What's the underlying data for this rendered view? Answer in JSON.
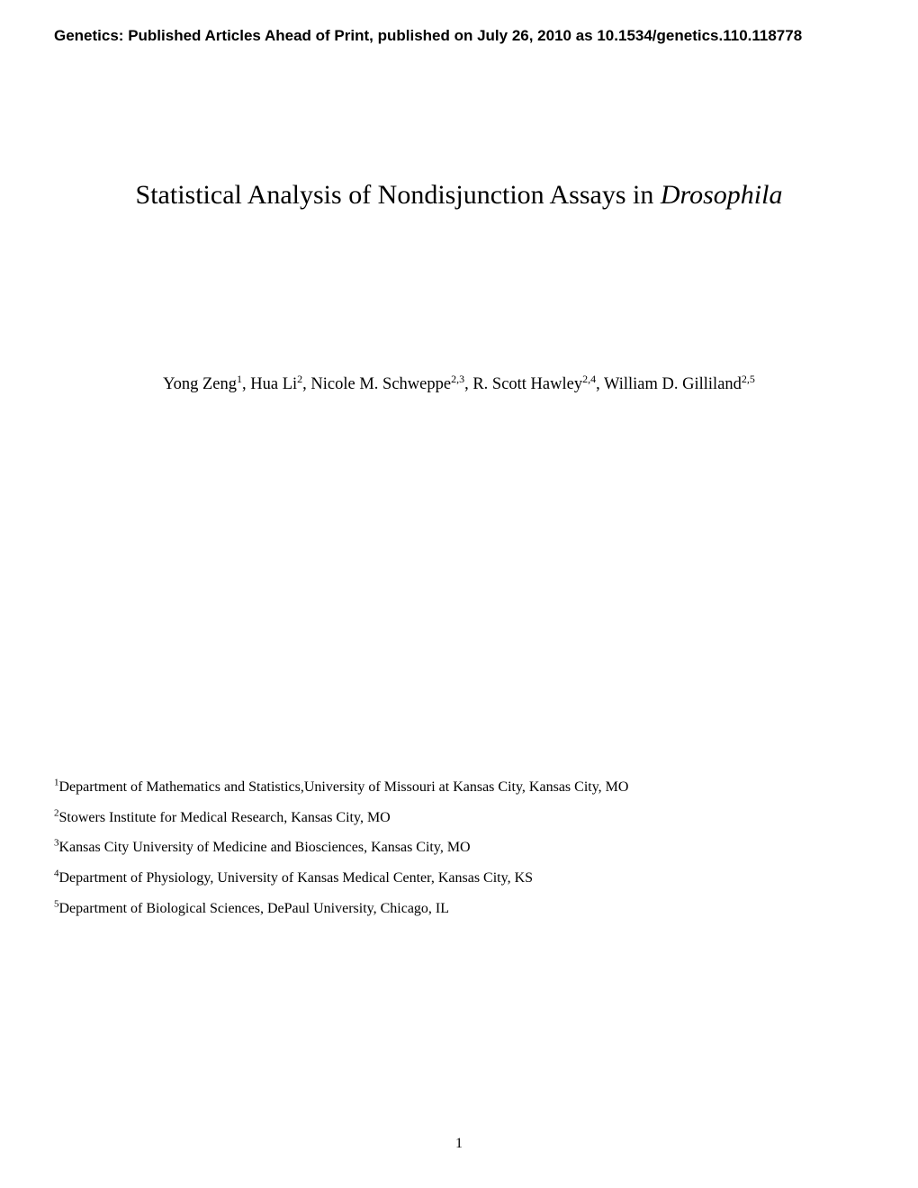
{
  "header": {
    "notice": "Genetics: Published Articles Ahead of Print, published on July 26, 2010 as 10.1534/genetics.110.118778"
  },
  "title": {
    "main": "Statistical Analysis of Nondisjunction Assays in ",
    "italic": "Drosophila"
  },
  "authors": [
    {
      "name": "Yong Zeng",
      "sup": "1"
    },
    {
      "name": "Hua Li",
      "sup": "2"
    },
    {
      "name": "Nicole M. Schweppe",
      "sup": "2,3"
    },
    {
      "name": "R. Scott Hawley",
      "sup": "2,4"
    },
    {
      "name": "William D. Gilliland",
      "sup": "2,5"
    }
  ],
  "affiliations": [
    {
      "num": "1",
      "text": "Department of Mathematics and Statistics,University of Missouri at Kansas City, Kansas City, MO"
    },
    {
      "num": "2",
      "text": "Stowers Institute for Medical Research, Kansas City, MO"
    },
    {
      "num": "3",
      "text": "Kansas City University of Medicine and Biosciences, Kansas City, MO"
    },
    {
      "num": "4",
      "text": "Department of Physiology, University of Kansas Medical Center, Kansas City, KS"
    },
    {
      "num": "5",
      "text": "Department of Biological Sciences, DePaul University, Chicago, IL"
    }
  ],
  "page_number": "1",
  "styling": {
    "background_color": "#ffffff",
    "text_color": "#000000",
    "header_font": "Arial",
    "body_font": "Times New Roman",
    "header_fontsize": 17,
    "title_fontsize": 30,
    "author_fontsize": 18.5,
    "affiliation_fontsize": 16,
    "page_number_fontsize": 16
  }
}
